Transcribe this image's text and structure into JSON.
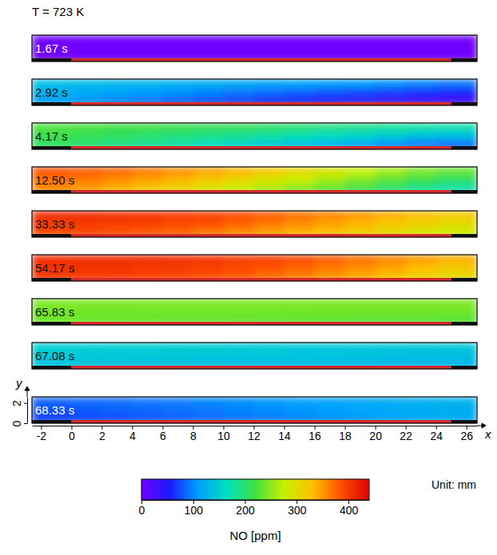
{
  "chart_data": {
    "type": "heatmap",
    "title": "T = 723 K",
    "x_label": "x",
    "y_label": "y",
    "unit_label": "Unit: mm",
    "xlim": [
      -2.6,
      26.7
    ],
    "xticks": [
      -2,
      0,
      2,
      4,
      6,
      8,
      10,
      12,
      14,
      16,
      18,
      20,
      22,
      24,
      26
    ],
    "ylim": [
      0,
      2.6
    ],
    "yticks": [
      0,
      2
    ],
    "x_bins": [
      -2.6,
      0,
      2,
      4,
      6,
      8,
      10,
      12,
      14,
      16,
      18,
      20,
      22,
      24,
      26.7
    ],
    "y_bins": [
      0,
      0.9,
      1.8,
      2.6
    ],
    "strips": [
      {
        "x": [
          -2.6,
          0
        ],
        "color": "#111111"
      },
      {
        "x": [
          0,
          25
        ],
        "color": "#d42a2a"
      },
      {
        "x": [
          25,
          26.7
        ],
        "color": "#111111"
      }
    ],
    "panels": [
      {
        "label": "1.67 s",
        "cells": [
          [
            0,
            0,
            0,
            0,
            0,
            0,
            0,
            0,
            0,
            0,
            0,
            0,
            0,
            0
          ],
          [
            0,
            0,
            0,
            0,
            0,
            0,
            0,
            0,
            0,
            0,
            0,
            0,
            0,
            0
          ],
          [
            0,
            0,
            0,
            0,
            0,
            0,
            0,
            0,
            0,
            0,
            0,
            0,
            0,
            0
          ]
        ]
      },
      {
        "label": "2.92 s",
        "cells": [
          [
            110,
            105,
            98,
            90,
            82,
            75,
            68,
            60,
            55,
            48,
            42,
            36,
            30,
            28
          ],
          [
            125,
            120,
            115,
            110,
            105,
            100,
            95,
            90,
            85,
            80,
            75,
            70,
            65,
            60
          ],
          [
            135,
            132,
            130,
            128,
            125,
            122,
            120,
            117,
            115,
            112,
            110,
            105,
            100,
            95
          ]
        ]
      },
      {
        "label": "4.17 s",
        "cells": [
          [
            205,
            198,
            190,
            182,
            175,
            165,
            155,
            145,
            135,
            125,
            115,
            100,
            90,
            85
          ],
          [
            215,
            210,
            205,
            200,
            195,
            190,
            185,
            178,
            170,
            162,
            155,
            148,
            140,
            135
          ],
          [
            225,
            222,
            220,
            218,
            215,
            212,
            210,
            205,
            200,
            195,
            190,
            185,
            180,
            175
          ]
        ]
      },
      {
        "label": "12.50 s",
        "cells": [
          [
            355,
            345,
            335,
            320,
            305,
            290,
            275,
            260,
            245,
            230,
            215,
            200,
            185,
            175
          ],
          [
            370,
            365,
            355,
            345,
            335,
            320,
            305,
            290,
            275,
            260,
            245,
            230,
            215,
            205
          ],
          [
            385,
            380,
            375,
            365,
            355,
            345,
            335,
            320,
            305,
            290,
            275,
            260,
            245,
            235
          ]
        ]
      },
      {
        "label": "33.33 s",
        "cells": [
          [
            390,
            390,
            385,
            380,
            375,
            365,
            355,
            345,
            335,
            325,
            315,
            300,
            290,
            280
          ],
          [
            400,
            400,
            398,
            395,
            390,
            385,
            375,
            365,
            355,
            345,
            335,
            320,
            310,
            300
          ],
          [
            410,
            410,
            408,
            405,
            400,
            395,
            390,
            380,
            370,
            360,
            350,
            340,
            330,
            320
          ]
        ]
      },
      {
        "label": "54.17 s",
        "cells": [
          [
            400,
            400,
            398,
            395,
            390,
            385,
            380,
            370,
            360,
            350,
            340,
            325,
            310,
            300
          ],
          [
            405,
            405,
            405,
            400,
            400,
            395,
            390,
            385,
            375,
            365,
            355,
            345,
            330,
            320
          ],
          [
            410,
            410,
            410,
            410,
            408,
            405,
            400,
            395,
            390,
            380,
            370,
            360,
            350,
            340
          ]
        ]
      },
      {
        "label": "65.83 s",
        "cells": [
          [
            238,
            238,
            237,
            236,
            235,
            235,
            234,
            233,
            232,
            231,
            230,
            230,
            229,
            228
          ],
          [
            240,
            240,
            240,
            240,
            240,
            240,
            240,
            240,
            240,
            240,
            240,
            240,
            240,
            240
          ],
          [
            245,
            245,
            245,
            245,
            245,
            245,
            245,
            245,
            245,
            245,
            245,
            245,
            245,
            245
          ]
        ]
      },
      {
        "label": "67.08 s",
        "cells": [
          [
            140,
            139,
            138,
            137,
            136,
            135,
            134,
            133,
            132,
            131,
            130,
            129,
            128,
            128
          ],
          [
            145,
            145,
            144,
            144,
            143,
            143,
            142,
            141,
            140,
            140,
            139,
            138,
            137,
            137
          ],
          [
            150,
            150,
            150,
            150,
            148,
            148,
            147,
            146,
            145,
            145,
            144,
            143,
            142,
            142
          ]
        ]
      },
      {
        "label": "68.33 s",
        "cells": [
          [
            70,
            73,
            76,
            80,
            84,
            88,
            92,
            96,
            100,
            104,
            108,
            112,
            116,
            118
          ],
          [
            78,
            81,
            84,
            87,
            90,
            94,
            98,
            102,
            106,
            110,
            114,
            118,
            121,
            123
          ],
          [
            85,
            88,
            90,
            93,
            96,
            100,
            103,
            106,
            110,
            113,
            116,
            120,
            123,
            125
          ]
        ]
      }
    ],
    "colorbar": {
      "label": "NO [ppm]",
      "range": [
        0,
        440
      ],
      "ticks": [
        0,
        100,
        200,
        300,
        400
      ]
    }
  }
}
